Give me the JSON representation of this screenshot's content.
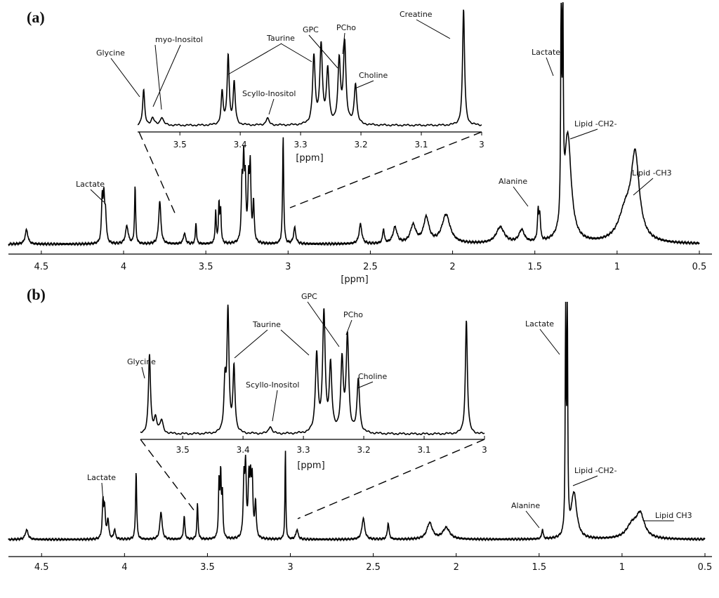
{
  "chart_data": [
    {
      "panel": "(a)",
      "type": "line",
      "xlabel": "[ppm]",
      "xlim": [
        4.7,
        0.5
      ],
      "x_reversed": true,
      "xticks": [
        4.5,
        4,
        3.5,
        3,
        2.5,
        2,
        1.5,
        1,
        0.5
      ],
      "xtick_labels": [
        "4.5",
        "4",
        "3.5",
        "3",
        "2.5",
        "2",
        "1.5",
        "1",
        "0.5"
      ],
      "peaks": [
        {
          "ppm": 4.59,
          "h": 0.08,
          "w": 0.01
        },
        {
          "ppm": 4.13,
          "h": 0.24,
          "w": 0.005
        },
        {
          "ppm": 4.12,
          "h": 0.23,
          "w": 0.005
        },
        {
          "ppm": 4.11,
          "h": 0.16,
          "w": 0.006
        },
        {
          "ppm": 3.98,
          "h": 0.1,
          "w": 0.01
        },
        {
          "ppm": 3.93,
          "h": 0.32,
          "w": 0.004
        },
        {
          "ppm": 3.78,
          "h": 0.24,
          "w": 0.008
        },
        {
          "ppm": 3.63,
          "h": 0.06,
          "w": 0.008
        },
        {
          "ppm": 3.56,
          "h": 0.12,
          "w": 0.004
        },
        {
          "ppm": 3.44,
          "h": 0.18,
          "w": 0.004
        },
        {
          "ppm": 3.42,
          "h": 0.22,
          "w": 0.004
        },
        {
          "ppm": 3.41,
          "h": 0.18,
          "w": 0.004
        },
        {
          "ppm": 3.28,
          "h": 0.3,
          "w": 0.005
        },
        {
          "ppm": 3.27,
          "h": 0.42,
          "w": 0.005
        },
        {
          "ppm": 3.26,
          "h": 0.3,
          "w": 0.005
        },
        {
          "ppm": 3.24,
          "h": 0.32,
          "w": 0.005
        },
        {
          "ppm": 3.23,
          "h": 0.4,
          "w": 0.005
        },
        {
          "ppm": 3.21,
          "h": 0.22,
          "w": 0.005
        },
        {
          "ppm": 3.03,
          "h": 0.6,
          "w": 0.004
        },
        {
          "ppm": 2.96,
          "h": 0.09,
          "w": 0.008
        },
        {
          "ppm": 2.56,
          "h": 0.11,
          "w": 0.01
        },
        {
          "ppm": 2.42,
          "h": 0.08,
          "w": 0.006
        },
        {
          "ppm": 2.35,
          "h": 0.09,
          "w": 0.015
        },
        {
          "ppm": 2.24,
          "h": 0.1,
          "w": 0.02
        },
        {
          "ppm": 2.16,
          "h": 0.14,
          "w": 0.02
        },
        {
          "ppm": 2.04,
          "h": 0.16,
          "w": 0.03
        },
        {
          "ppm": 1.71,
          "h": 0.09,
          "w": 0.03
        },
        {
          "ppm": 1.58,
          "h": 0.07,
          "w": 0.02
        },
        {
          "ppm": 1.48,
          "h": 0.16,
          "w": 0.005
        },
        {
          "ppm": 1.47,
          "h": 0.14,
          "w": 0.005
        },
        {
          "ppm": 1.34,
          "h": 1.35,
          "w": 0.003
        },
        {
          "ppm": 1.33,
          "h": 1.3,
          "w": 0.003
        },
        {
          "ppm": 1.3,
          "h": 0.6,
          "w": 0.025
        },
        {
          "ppm": 0.95,
          "h": 0.16,
          "w": 0.05
        },
        {
          "ppm": 0.89,
          "h": 0.46,
          "w": 0.03
        }
      ],
      "baseline": 0.02,
      "annotations": [
        {
          "text": "Lactate",
          "ppm": 4.12
        },
        {
          "text": "Alanine",
          "ppm": 1.48
        },
        {
          "text": "Lactate",
          "ppm": 1.34
        },
        {
          "text": "Lipid -CH2-",
          "ppm": 1.3
        },
        {
          "text": "Lipid -CH3",
          "ppm": 0.89
        }
      ],
      "inset": {
        "xlabel": "[ppm]",
        "xlim": [
          3.57,
          3.0
        ],
        "xticks": [
          3.5,
          3.4,
          3.3,
          3.2,
          3.1,
          3
        ],
        "xtick_labels": [
          "3.5",
          "3.4",
          "3.3",
          "3.2",
          "3.1",
          "3"
        ],
        "peaks": [
          {
            "ppm": 3.56,
            "h": 0.3,
            "w": 0.002
          },
          {
            "ppm": 3.545,
            "h": 0.06,
            "w": 0.003
          },
          {
            "ppm": 3.53,
            "h": 0.07,
            "w": 0.003
          },
          {
            "ppm": 3.43,
            "h": 0.28,
            "w": 0.002
          },
          {
            "ppm": 3.42,
            "h": 0.6,
            "w": 0.002
          },
          {
            "ppm": 3.41,
            "h": 0.36,
            "w": 0.002
          },
          {
            "ppm": 3.355,
            "h": 0.06,
            "w": 0.003
          },
          {
            "ppm": 3.278,
            "h": 0.58,
            "w": 0.0025
          },
          {
            "ppm": 3.266,
            "h": 0.68,
            "w": 0.0025
          },
          {
            "ppm": 3.255,
            "h": 0.46,
            "w": 0.0025
          },
          {
            "ppm": 3.236,
            "h": 0.54,
            "w": 0.0025
          },
          {
            "ppm": 3.227,
            "h": 0.7,
            "w": 0.0025
          },
          {
            "ppm": 3.209,
            "h": 0.35,
            "w": 0.0025
          },
          {
            "ppm": 3.03,
            "h": 1.0,
            "w": 0.002
          }
        ],
        "annotations": [
          {
            "text": "Glycine",
            "ppm": 3.56
          },
          {
            "text": "myo-Inositol",
            "ppm": 3.545
          },
          {
            "text": "Taurine",
            "ppm": 3.42
          },
          {
            "text": "Scyllo-Inositol",
            "ppm": 3.355
          },
          {
            "text": "GPC",
            "ppm": 3.236
          },
          {
            "text": "PCho",
            "ppm": 3.227
          },
          {
            "text": "Choline",
            "ppm": 3.209
          },
          {
            "text": "Creatine",
            "ppm": 3.03
          }
        ]
      }
    },
    {
      "panel": "(b)",
      "type": "line",
      "xlabel": "",
      "xlim": [
        4.7,
        0.5
      ],
      "x_reversed": true,
      "xticks": [
        4.5,
        4,
        3.5,
        3,
        2.5,
        2,
        1.5,
        1,
        0.5
      ],
      "xtick_labels": [
        "4.5",
        "4",
        "3.5",
        "3",
        "2.5",
        "2",
        "1.5",
        "1",
        "0.5"
      ],
      "peaks": [
        {
          "ppm": 4.59,
          "h": 0.06,
          "w": 0.01
        },
        {
          "ppm": 4.13,
          "h": 0.22,
          "w": 0.005
        },
        {
          "ppm": 4.12,
          "h": 0.18,
          "w": 0.005
        },
        {
          "ppm": 4.1,
          "h": 0.12,
          "w": 0.006
        },
        {
          "ppm": 4.06,
          "h": 0.06,
          "w": 0.006
        },
        {
          "ppm": 3.93,
          "h": 0.42,
          "w": 0.004
        },
        {
          "ppm": 3.78,
          "h": 0.17,
          "w": 0.008
        },
        {
          "ppm": 3.64,
          "h": 0.14,
          "w": 0.005
        },
        {
          "ppm": 3.56,
          "h": 0.22,
          "w": 0.004
        },
        {
          "ppm": 3.43,
          "h": 0.34,
          "w": 0.004
        },
        {
          "ppm": 3.42,
          "h": 0.38,
          "w": 0.004
        },
        {
          "ppm": 3.41,
          "h": 0.26,
          "w": 0.004
        },
        {
          "ppm": 3.28,
          "h": 0.34,
          "w": 0.005
        },
        {
          "ppm": 3.27,
          "h": 0.42,
          "w": 0.005
        },
        {
          "ppm": 3.25,
          "h": 0.34,
          "w": 0.005
        },
        {
          "ppm": 3.24,
          "h": 0.3,
          "w": 0.005
        },
        {
          "ppm": 3.23,
          "h": 0.34,
          "w": 0.005
        },
        {
          "ppm": 3.21,
          "h": 0.22,
          "w": 0.005
        },
        {
          "ppm": 3.03,
          "h": 0.55,
          "w": 0.003
        },
        {
          "ppm": 2.96,
          "h": 0.06,
          "w": 0.008
        },
        {
          "ppm": 2.56,
          "h": 0.13,
          "w": 0.01
        },
        {
          "ppm": 2.41,
          "h": 0.1,
          "w": 0.006
        },
        {
          "ppm": 2.16,
          "h": 0.1,
          "w": 0.02
        },
        {
          "ppm": 2.06,
          "h": 0.07,
          "w": 0.025
        },
        {
          "ppm": 1.48,
          "h": 0.06,
          "w": 0.005
        },
        {
          "ppm": 1.34,
          "h": 1.45,
          "w": 0.003
        },
        {
          "ppm": 1.33,
          "h": 1.4,
          "w": 0.003
        },
        {
          "ppm": 1.29,
          "h": 0.28,
          "w": 0.02
        },
        {
          "ppm": 0.94,
          "h": 0.08,
          "w": 0.04
        },
        {
          "ppm": 0.89,
          "h": 0.14,
          "w": 0.03
        }
      ],
      "baseline": 0.01,
      "annotations": [
        {
          "text": "Lactate",
          "ppm": 4.12
        },
        {
          "text": "Alanine",
          "ppm": 1.48
        },
        {
          "text": "Lactate",
          "ppm": 1.34
        },
        {
          "text": "Lipid -CH2-",
          "ppm": 1.29
        },
        {
          "text": "Lipid CH3",
          "ppm": 0.89
        }
      ],
      "inset": {
        "xlabel": "[ppm]",
        "xlim": [
          3.57,
          3.0
        ],
        "xticks": [
          3.5,
          3.4,
          3.3,
          3.2,
          3.1,
          3
        ],
        "xtick_labels": [
          "3.5",
          "3.4",
          "3.3",
          "3.2",
          "3.1",
          "3"
        ],
        "peaks": [
          {
            "ppm": 3.555,
            "h": 0.62,
            "w": 0.002
          },
          {
            "ppm": 3.545,
            "h": 0.12,
            "w": 0.003
          },
          {
            "ppm": 3.535,
            "h": 0.1,
            "w": 0.003
          },
          {
            "ppm": 3.43,
            "h": 0.38,
            "w": 0.002
          },
          {
            "ppm": 3.425,
            "h": 0.95,
            "w": 0.002
          },
          {
            "ppm": 3.415,
            "h": 0.52,
            "w": 0.002
          },
          {
            "ppm": 3.355,
            "h": 0.06,
            "w": 0.003
          },
          {
            "ppm": 3.278,
            "h": 0.62,
            "w": 0.0025
          },
          {
            "ppm": 3.266,
            "h": 0.94,
            "w": 0.0025
          },
          {
            "ppm": 3.255,
            "h": 0.52,
            "w": 0.0025
          },
          {
            "ppm": 3.236,
            "h": 0.56,
            "w": 0.0025
          },
          {
            "ppm": 3.227,
            "h": 0.76,
            "w": 0.0025
          },
          {
            "ppm": 3.209,
            "h": 0.42,
            "w": 0.0025
          },
          {
            "ppm": 3.03,
            "h": 0.9,
            "w": 0.002
          }
        ],
        "annotations": [
          {
            "text": "Glycine",
            "ppm": 3.555
          },
          {
            "text": "Taurine",
            "ppm": 3.42
          },
          {
            "text": "Scyllo-Inositol",
            "ppm": 3.355
          },
          {
            "text": "GPC",
            "ppm": 3.236
          },
          {
            "text": "PCho",
            "ppm": 3.227
          },
          {
            "text": "Choline",
            "ppm": 3.209
          }
        ]
      }
    }
  ]
}
